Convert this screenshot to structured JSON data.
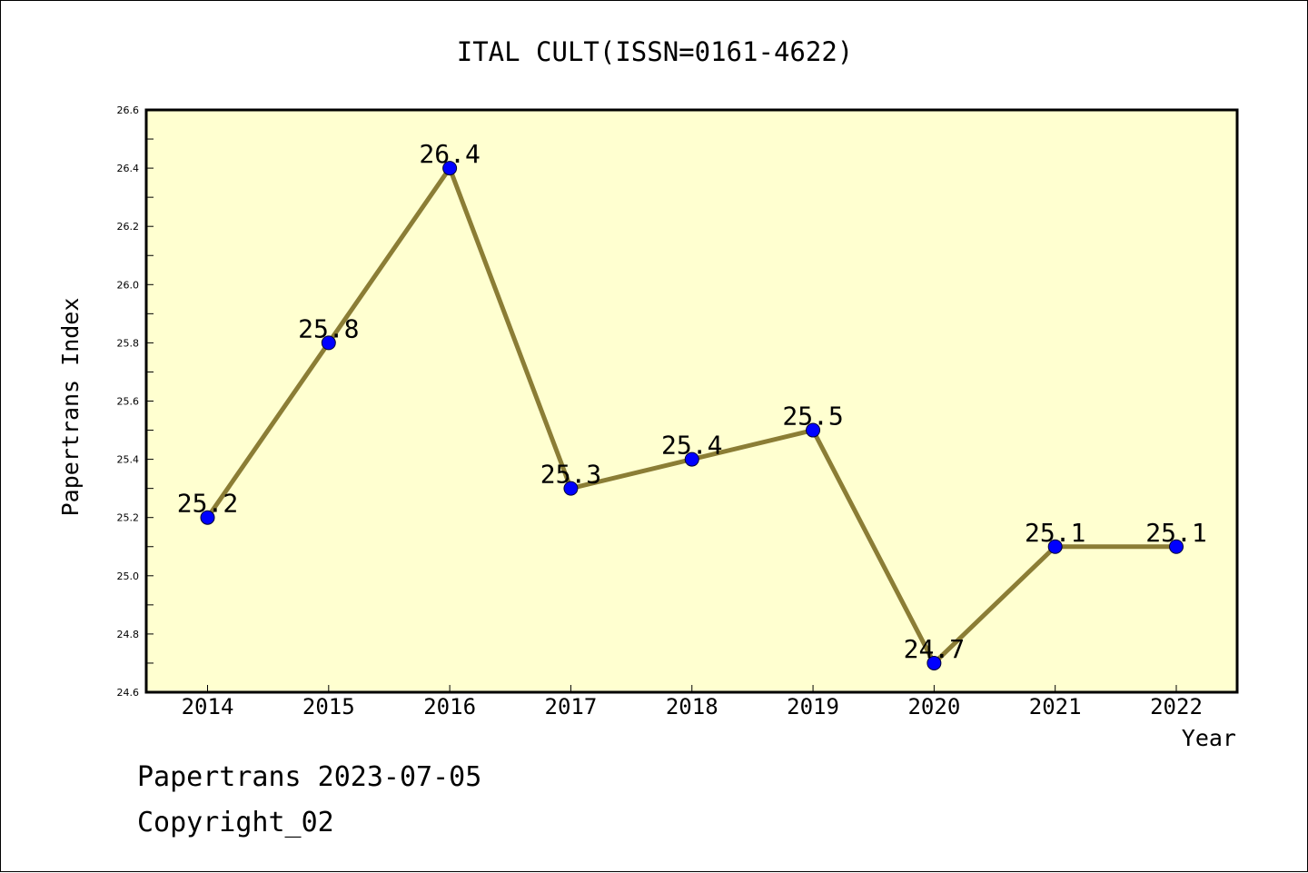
{
  "chart_data": {
    "type": "line",
    "title": "ITAL CULT(ISSN=0161-4622)",
    "xlabel": "Year",
    "ylabel": "Papertrans Index",
    "x": [
      "2014",
      "2015",
      "2016",
      "2017",
      "2018",
      "2019",
      "2020",
      "2021",
      "2022"
    ],
    "values": [
      25.2,
      25.8,
      26.4,
      25.3,
      25.4,
      25.5,
      24.7,
      25.1,
      25.1
    ],
    "data_labels": [
      "25.2",
      "25.8",
      "26.4",
      "25.3",
      "25.4",
      "25.5",
      "24.7",
      "25.1",
      "25.1"
    ],
    "ylim": [
      24.6,
      26.6
    ],
    "yticks": [
      "24.6",
      "24.8",
      "25.0",
      "25.2",
      "25.4",
      "25.6",
      "25.8",
      "26.0",
      "26.2",
      "26.4",
      "26.6"
    ],
    "grid": false,
    "legend": "none",
    "colors": {
      "plot_background": "#ffffd0",
      "line": "#8b7d35",
      "marker": "#0000ff"
    }
  },
  "footer": {
    "source": "Papertrans 2023-07-05",
    "copyright": "Copyright_02"
  }
}
